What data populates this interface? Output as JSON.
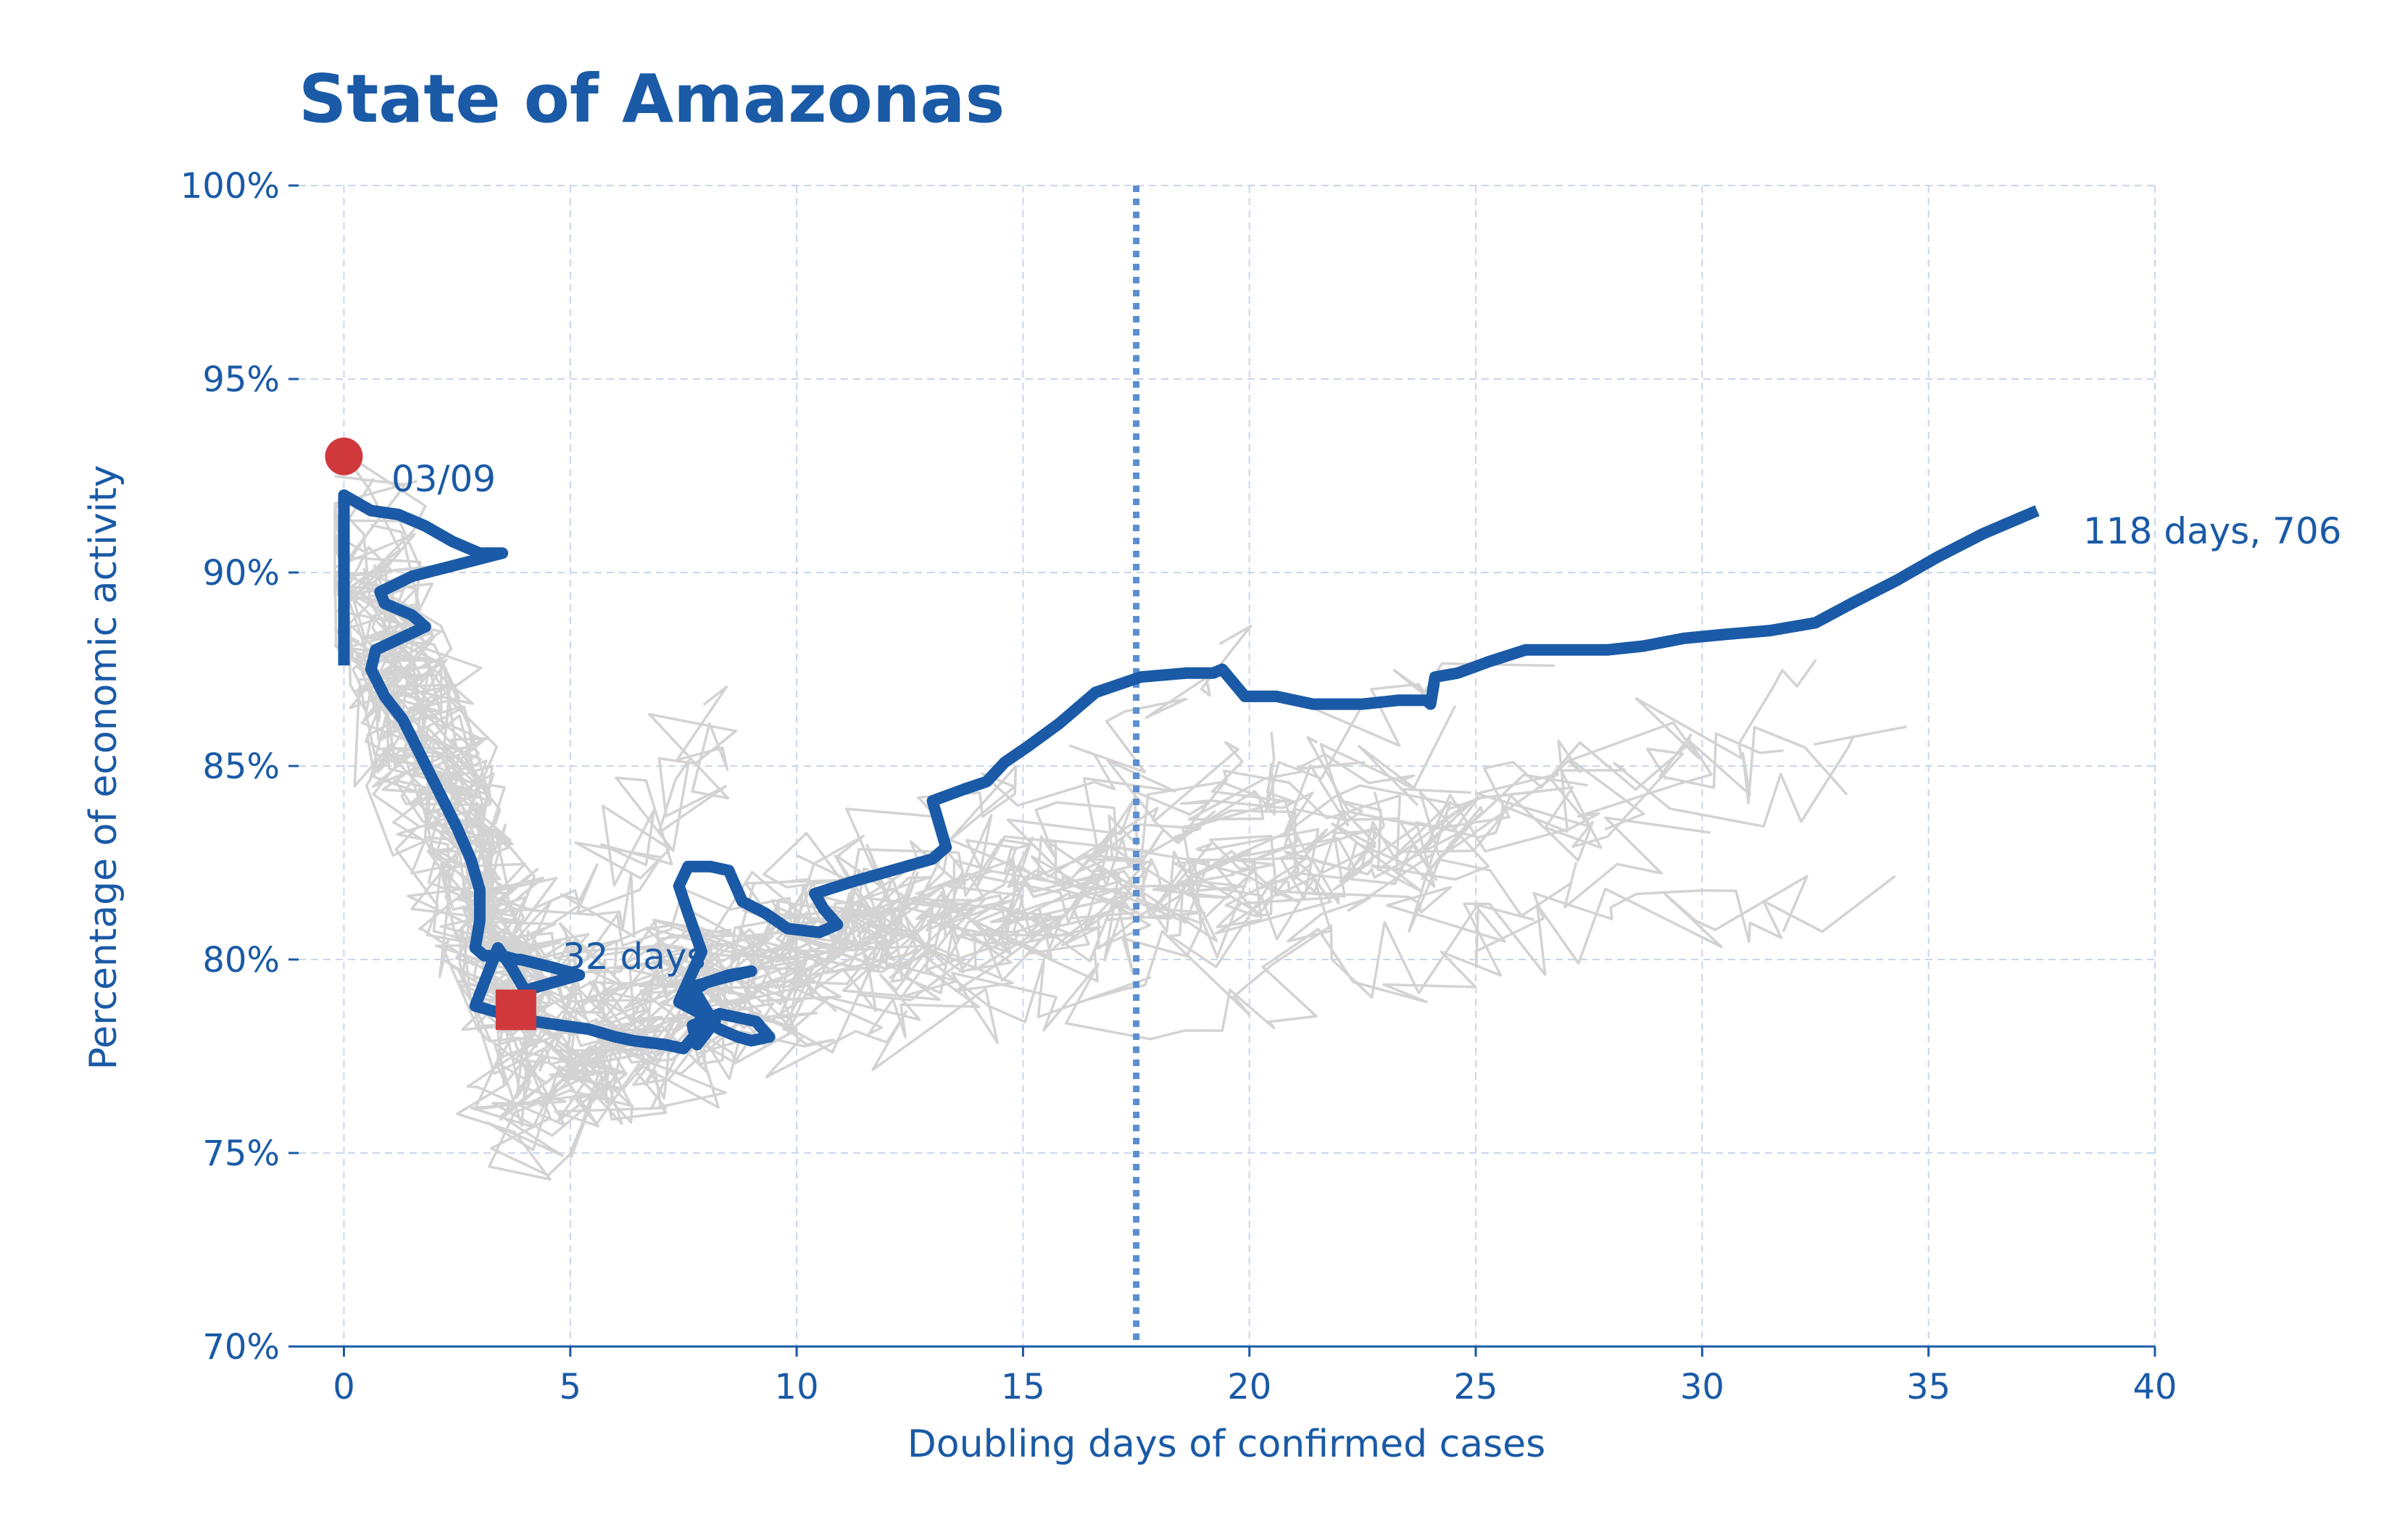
{
  "chart_data": {
    "type": "line",
    "title": "State of Amazonas",
    "xlabel": "Doubling days of confirmed cases",
    "ylabel": "Percentage of economic activity",
    "xlim": [
      -1,
      40
    ],
    "ylim": [
      70,
      100
    ],
    "x_ticks": [
      0,
      5,
      10,
      15,
      20,
      25,
      30,
      35,
      40
    ],
    "y_ticks": [
      70,
      75,
      80,
      85,
      90,
      95,
      100
    ],
    "y_tick_labels": [
      "70%",
      "75%",
      "80%",
      "85%",
      "90%",
      "95%",
      "100%"
    ],
    "grid": true,
    "reference_line_x": 17.5,
    "colors": {
      "highlight": "#1a5aa6",
      "background_series": "#d3d3d3",
      "marker": "#d0393b",
      "reference": "#5b8fd0",
      "grid": "#c9d6ea"
    },
    "annotations": {
      "start": "03/09",
      "mid": "32 days",
      "end": "118 days, 706"
    },
    "highlight_series": {
      "x": [
        0,
        0,
        0,
        0,
        0,
        0.3,
        0.6,
        1.2,
        1.8,
        2.4,
        3,
        3.5,
        2.5,
        1.5,
        0.8,
        0.9,
        1.5,
        1.8,
        0.7,
        0.6,
        0.9,
        1.3,
        1.6,
        1.9,
        2.2,
        2.5,
        2.8,
        3.0,
        3.0,
        2.9,
        3.1,
        3.5,
        3.8,
        3.9,
        4.6,
        5.2,
        4.6,
        4.0,
        3.7,
        3.4,
        3.1,
        2.9,
        3.5,
        4.2,
        4.8,
        5.4,
        6.0,
        6.4,
        7.1,
        7.5,
        7.8,
        8.1,
        7.7,
        8.3,
        9.0,
        8.5,
        8.0,
        7.6,
        7.9,
        8.3,
        8.7,
        9.0,
        9.4,
        9.1,
        8.3,
        7.7,
        7.8,
        8.2,
        7.4,
        7.9,
        7.6,
        7.4,
        7.6,
        8.1,
        8.5,
        8.8,
        9.3,
        9.8,
        10.5,
        10.9,
        10.6,
        10.4,
        11.2,
        12.1,
        13.0,
        13.3,
        13.0,
        13.7,
        14.2,
        14.6,
        15.1,
        15.8,
        16.6,
        17.6,
        18.6,
        19.2,
        19.4,
        19.9,
        20.6,
        21.4,
        22.5,
        23.3,
        23.9,
        24.0,
        24.1,
        24.6,
        25.3,
        26.1,
        27.1,
        27.9,
        28.7,
        29.6,
        30.5,
        31.5,
        32.5,
        33.3,
        34.3,
        35.2,
        36.2,
        37.4
      ],
      "y": [
        87.6,
        88.5,
        89.7,
        91.0,
        92.0,
        91.8,
        91.6,
        91.5,
        91.2,
        90.8,
        90.5,
        90.5,
        90.2,
        89.9,
        89.5,
        89.2,
        88.9,
        88.6,
        88.0,
        87.5,
        86.8,
        86.2,
        85.5,
        84.8,
        84.1,
        83.4,
        82.6,
        81.8,
        81.0,
        80.3,
        80.1,
        80.1,
        80.0,
        80.0,
        79.8,
        79.6,
        79.4,
        79.2,
        79.8,
        80.3,
        79.4,
        78.8,
        78.6,
        78.4,
        78.3,
        78.2,
        78.0,
        77.9,
        77.8,
        77.7,
        78.1,
        78.5,
        79.3,
        79.5,
        79.7,
        79.6,
        79.4,
        79.1,
        78.5,
        78.2,
        78.0,
        77.9,
        78.0,
        78.4,
        78.6,
        78.3,
        77.8,
        78.4,
        78.9,
        80.2,
        81.2,
        81.9,
        82.4,
        82.4,
        82.3,
        81.5,
        81.2,
        80.8,
        80.7,
        80.9,
        81.3,
        81.7,
        82.0,
        82.3,
        82.6,
        82.9,
        84.1,
        84.4,
        84.6,
        85.1,
        85.5,
        86.1,
        86.9,
        87.3,
        87.4,
        87.4,
        87.5,
        86.8,
        86.8,
        86.6,
        86.6,
        86.7,
        86.7,
        86.6,
        87.3,
        87.4,
        87.7,
        88.0,
        88.0,
        88.0,
        88.1,
        88.3,
        88.4,
        88.5,
        88.7,
        89.2,
        89.8,
        90.4,
        91.0,
        91.6
      ]
    },
    "start_marker": {
      "x": 0,
      "y": 93.0
    },
    "mid_marker": {
      "x": 3.8,
      "y": 78.7
    },
    "background_series_count": 26
  }
}
